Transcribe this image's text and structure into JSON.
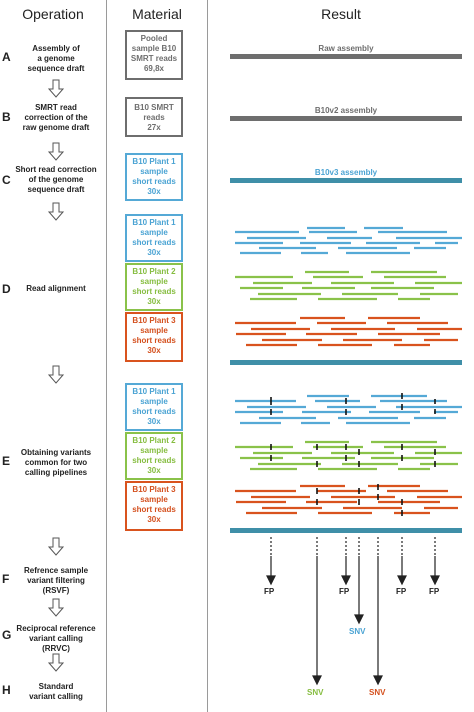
{
  "headers": {
    "operation": "Operation",
    "material": "Material",
    "result": "Result"
  },
  "steps": [
    {
      "letter": "A",
      "text": [
        "Assembly of",
        "a genome",
        "sequence draft"
      ]
    },
    {
      "letter": "B",
      "text": [
        "SMRT read",
        "correction of the",
        "raw genome draft"
      ]
    },
    {
      "letter": "C",
      "text": [
        "Short read correction",
        "of the genome",
        "sequence draft"
      ]
    },
    {
      "letter": "D",
      "text": [
        "Read alignment"
      ]
    },
    {
      "letter": "E",
      "text": [
        "Obtaining variants",
        "common for two",
        "calling pipelines"
      ]
    },
    {
      "letter": "F",
      "text": [
        "Refrence sample",
        "variant filtering",
        "(RSVF)"
      ]
    },
    {
      "letter": "G",
      "text": [
        "Reciprocal reference",
        "variant calling",
        "(RRVC)"
      ]
    },
    {
      "letter": "H",
      "text": [
        "Standard",
        "variant calling"
      ]
    }
  ],
  "materials": {
    "pooled": [
      "Pooled",
      "sample B10",
      "SMRT reads",
      "69,8x"
    ],
    "b10smrt": [
      "B10 SMRT",
      "reads",
      "27x"
    ],
    "plant1_c": [
      "B10 Plant 1",
      "sample",
      "short reads",
      "30x"
    ],
    "plant1": [
      "B10 Plant 1",
      "sample",
      "short reads",
      "30x"
    ],
    "plant2": [
      "B10 Plant 2",
      "sample",
      "short reads",
      "30x"
    ],
    "plant3": [
      "B10 Plant 3",
      "sample",
      "short reads",
      "30x"
    ]
  },
  "assemblies": {
    "raw": "Raw assembly",
    "b10v2": "B10v2 assembly",
    "b10v3": "B10v3 assembly"
  },
  "results": {
    "fp": "FP",
    "snv": "SNV"
  },
  "colors": {
    "gray": "#6e6e6e",
    "blue": "#4aa3d3",
    "green": "#86bd40",
    "orange": "#d4501e",
    "teal": "#3f8fa8"
  }
}
